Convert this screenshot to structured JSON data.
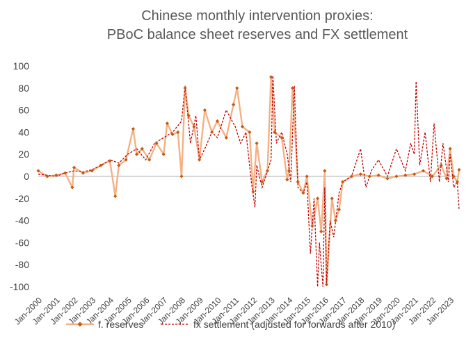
{
  "chart_data": {
    "type": "line",
    "title": [
      "Chinese monthly intervention proxies:",
      "PBoC balance sheet reserves and FX settlement"
    ],
    "ylim": [
      -100,
      100
    ],
    "yticks": [
      100,
      80,
      60,
      40,
      20,
      0,
      -20,
      -40,
      -60,
      -80,
      -100
    ],
    "xtick_labels": [
      "Jan-2000",
      "Jan-2001",
      "Jan-2002",
      "Jan-2003",
      "Jan-2004",
      "Jan-2005",
      "Jan-2006",
      "Jan-2007",
      "Jan-2008",
      "Jan-2009",
      "Jan-2010",
      "Jan-2011",
      "Jan-2012",
      "Jan-2013",
      "Jan-2014",
      "Jan-2015",
      "Jan-2016",
      "Jan-2017",
      "Jan-2018",
      "Jan-2019",
      "Jan-2020",
      "Jan-2021",
      "Jan-2022",
      "Jan-2023"
    ],
    "x_start": "Jan-2000",
    "x_end": "Jun-2023",
    "legend_position": "bottom",
    "series": [
      {
        "name": "f. reserves",
        "color": "#f4b183",
        "marker_color": "#c55a11",
        "style": "solid-with-diamond-markers",
        "x": [
          2000.0,
          2000.5,
          2001.0,
          2001.5,
          2001.9,
          2002.0,
          2002.5,
          2003.0,
          2003.5,
          2004.0,
          2004.3,
          2004.5,
          2004.9,
          2005.3,
          2005.5,
          2005.8,
          2006.2,
          2006.6,
          2007.0,
          2007.2,
          2007.5,
          2007.8,
          2008.0,
          2008.2,
          2008.4,
          2008.7,
          2009.0,
          2009.3,
          2009.7,
          2010.0,
          2010.5,
          2010.9,
          2011.1,
          2011.4,
          2011.8,
          2012.0,
          2012.2,
          2012.5,
          2012.8,
          2013.0,
          2013.2,
          2013.6,
          2013.9,
          2014.0,
          2014.2,
          2014.5,
          2014.8,
          2015.0,
          2015.3,
          2015.6,
          2015.8,
          2016.0,
          2016.1,
          2016.4,
          2016.6,
          2016.8,
          2017.0,
          2017.5,
          2018.0,
          2018.5,
          2019.0,
          2019.5,
          2020.0,
          2020.5,
          2021.0,
          2021.5,
          2022.0,
          2022.5,
          2022.8,
          2023.0,
          2023.2,
          2023.4,
          2023.5
        ],
        "y": [
          5,
          0,
          1,
          3,
          -10,
          8,
          3,
          5,
          10,
          14,
          -18,
          10,
          15,
          43,
          20,
          25,
          15,
          30,
          20,
          48,
          38,
          40,
          0,
          80,
          55,
          45,
          15,
          60,
          40,
          50,
          35,
          65,
          80,
          45,
          40,
          -14,
          30,
          -5,
          5,
          90,
          40,
          35,
          -3,
          5,
          80,
          -5,
          -15,
          0,
          -45,
          -20,
          -50,
          5,
          -98,
          -20,
          -40,
          -30,
          -5,
          0,
          2,
          0,
          1,
          -2,
          0,
          1,
          2,
          5,
          0,
          10,
          -2,
          25,
          0,
          -5,
          6
        ]
      },
      {
        "name": "fx settlement (adjusted for forwards after 2010)",
        "color": "#c00000",
        "style": "dashed",
        "x": [
          2000.0,
          2000.5,
          2001.0,
          2001.5,
          2002.0,
          2002.5,
          2003.0,
          2003.5,
          2004.0,
          2004.5,
          2005.0,
          2005.5,
          2006.0,
          2006.5,
          2007.0,
          2007.5,
          2008.0,
          2008.2,
          2008.5,
          2008.8,
          2009.0,
          2009.3,
          2009.7,
          2010.0,
          2010.5,
          2011.0,
          2011.3,
          2011.6,
          2011.9,
          2012.1,
          2012.2,
          2012.5,
          2012.8,
          2013.0,
          2013.1,
          2013.3,
          2013.6,
          2013.9,
          2014.1,
          2014.3,
          2014.5,
          2014.8,
          2015.0,
          2015.2,
          2015.4,
          2015.6,
          2015.7,
          2015.9,
          2016.0,
          2016.1,
          2016.3,
          2016.5,
          2016.8,
          2017.0,
          2017.5,
          2018.0,
          2018.3,
          2018.6,
          2019.0,
          2019.5,
          2020.0,
          2020.5,
          2020.8,
          2021.0,
          2021.1,
          2021.3,
          2021.6,
          2021.9,
          2022.1,
          2022.4,
          2022.6,
          2022.9,
          2023.0,
          2023.2,
          2023.4,
          2023.5
        ],
        "y": [
          2,
          1,
          0,
          3,
          5,
          4,
          6,
          10,
          15,
          12,
          20,
          25,
          15,
          30,
          35,
          40,
          50,
          82,
          30,
          55,
          15,
          25,
          40,
          35,
          60,
          45,
          30,
          40,
          -5,
          -28,
          10,
          -10,
          5,
          15,
          91,
          30,
          40,
          20,
          -5,
          82,
          -10,
          -15,
          -5,
          -70,
          -20,
          -100,
          -60,
          -100,
          -10,
          -98,
          -40,
          -55,
          -15,
          -5,
          0,
          25,
          -10,
          5,
          15,
          0,
          25,
          5,
          30,
          20,
          86,
          10,
          40,
          -5,
          48,
          -5,
          30,
          -5,
          20,
          -10,
          -5,
          -30
        ]
      }
    ]
  }
}
